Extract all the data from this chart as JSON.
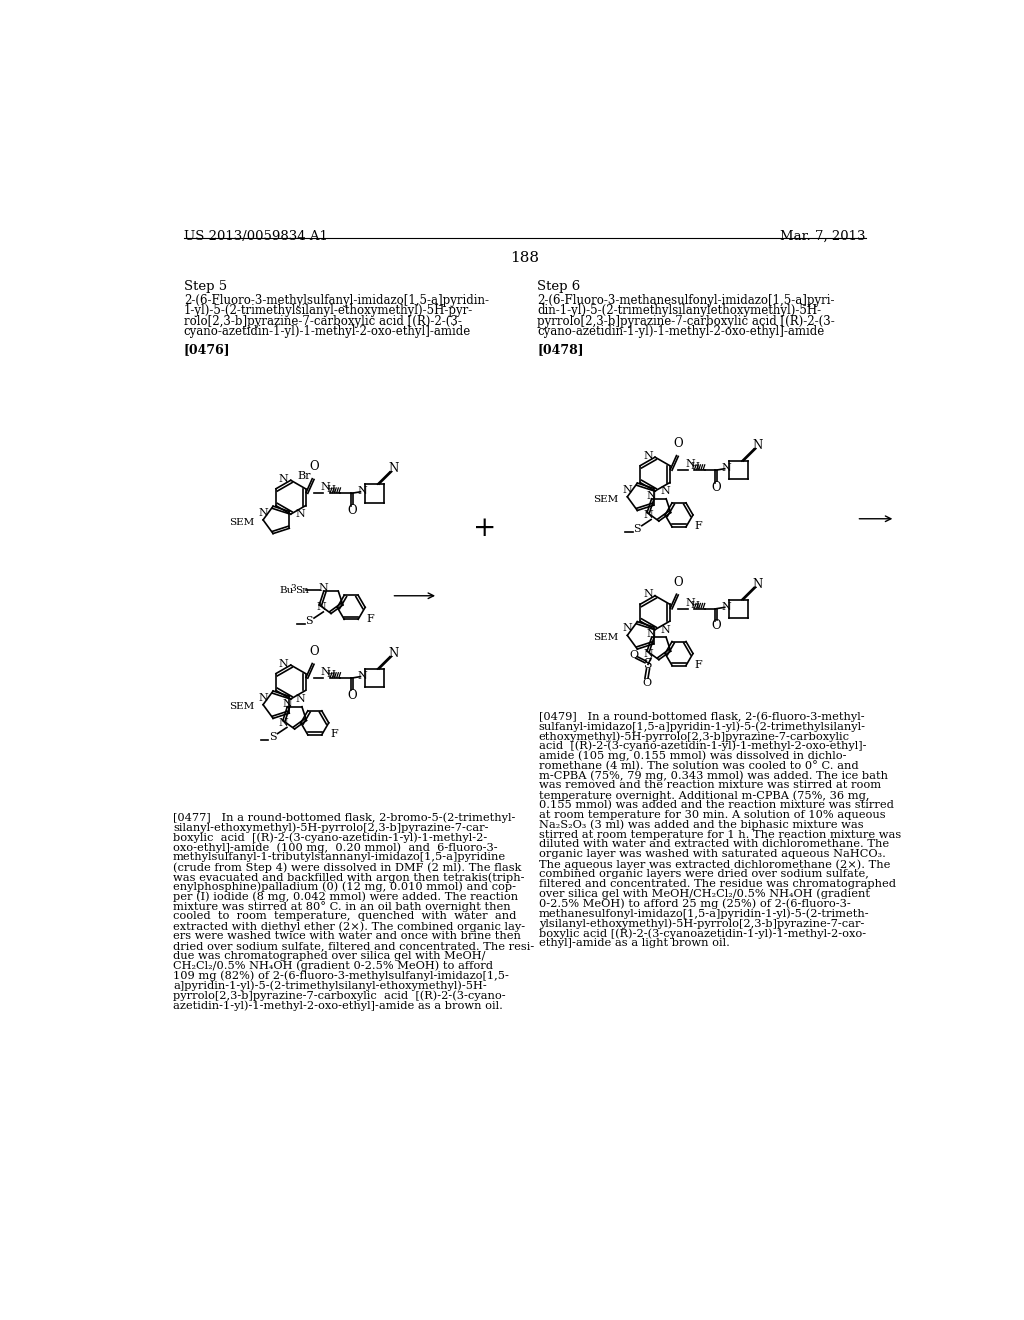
{
  "page_number": "188",
  "patent_number": "US 2013/0059834 A1",
  "patent_date": "Mar. 7, 2013",
  "background_color": "#ffffff",
  "text_color": "#000000",
  "step5_label": "Step 5",
  "step6_label": "Step 6",
  "step5_lines": [
    "2-(6-Fluoro-3-methylsulfanyl-imidazo[1,5-a]pyridin-",
    "1-yl)-5-(2-trimethylsilanyl-ethoxymethyl)-5H-pyr-",
    "rolo[2,3-b]pyrazine-7-carboxylic acid [(R)-2-(3-",
    "cyano-azetidin-1-yl)-1-methyl-2-oxo-ethyl]-amide"
  ],
  "step6_lines": [
    "2-(6-Fluoro-3-methanesulfonyl-imidazo[1,5-a]pyri-",
    "din-1-yl)-5-(2-trimethylsilanylethoxymethyl)-5H-",
    "pyrrolo[2,3-b]pyrazine-7-carboxylic acid [(R)-2-(3-",
    "cyano-azetidin-1-yl)-1-methyl-2-oxo-ethyl]-amide"
  ],
  "ref0476": "[0476]",
  "ref0477": "[0477]",
  "ref0478": "[0478]",
  "ref0479": "[0479]",
  "para0477": [
    "[0477]   In a round-bottomed flask, 2-bromo-5-(2-trimethyl-",
    "silanyl-ethoxymethyl)-5H-pyrrolo[2,3-b]pyrazine-7-car-",
    "boxylic  acid  [(R)-2-(3-cyano-azetidin-1-yl)-1-methyl-2-",
    "oxo-ethyl]-amide  (100 mg,  0.20 mmol)  and  6-fluoro-3-",
    "methylsulfanyl-1-tributylstannanyl-imidazo[1,5-a]pyridine",
    "(crude from Step 4) were dissolved in DMF (2 ml). The flask",
    "was evacuated and backfilled with argon then tetrakis(triph-",
    "enylphosphine)palladium (0) (12 mg, 0.010 mmol) and cop-",
    "per (I) iodide (8 mg, 0.042 mmol) were added. The reaction",
    "mixture was stirred at 80° C. in an oil bath overnight then",
    "cooled  to  room  temperature,  quenched  with  water  and",
    "extracted with diethyl ether (2×). The combined organic lay-",
    "ers were washed twice with water and once with brine then",
    "dried over sodium sulfate, filtered and concentrated. The resi-",
    "due was chromatographed over silica gel with MeOH/",
    "CH₂Cl₂/0.5% NH₄OH (gradient 0-2.5% MeOH) to afford",
    "109 mg (82%) of 2-(6-fluoro-3-methylsulfanyl-imidazo[1,5-",
    "a]pyridin-1-yl)-5-(2-trimethylsilanyl-ethoxymethyl)-5H-",
    "pyrrolo[2,3-b]pyrazine-7-carboxylic  acid  [(R)-2-(3-cyano-",
    "azetidin-1-yl)-1-methyl-2-oxo-ethyl]-amide as a brown oil."
  ],
  "para0479": [
    "[0479]   In a round-bottomed flask, 2-(6-fluoro-3-methyl-",
    "sulfanyl-imidazo[1,5-a]pyridin-1-yl)-5-(2-trimethylsilanyl-",
    "ethoxymethyl)-5H-pyrrolo[2,3-b]pyrazine-7-carboxylic",
    "acid  [(R)-2-(3-cyano-azetidin-1-yl)-1-methyl-2-oxo-ethyl]-",
    "amide (105 mg, 0.155 mmol) was dissolved in dichlo-",
    "romethane (4 ml). The solution was cooled to 0° C. and",
    "m-CPBA (75%, 79 mg, 0.343 mmol) was added. The ice bath",
    "was removed and the reaction mixture was stirred at room",
    "temperature overnight. Additional m-CPBA (75%, 36 mg,",
    "0.155 mmol) was added and the reaction mixture was stirred",
    "at room temperature for 30 min. A solution of 10% aqueous",
    "Na₂S₂O₃ (3 ml) was added and the biphasic mixture was",
    "stirred at room temperature for 1 h. The reaction mixture was",
    "diluted with water and extracted with dichloromethane. The",
    "organic layer was washed with saturated aqueous NaHCO₃.",
    "The aqueous layer was extracted dichloromethane (2×). The",
    "combined organic layers were dried over sodium sulfate,",
    "filtered and concentrated. The residue was chromatographed",
    "over silica gel with MeOH/CH₂Cl₂/0.5% NH₄OH (gradient",
    "0-2.5% MeOH) to afford 25 mg (25%) of 2-(6-fluoro-3-",
    "methanesulfonyl-imidazo[1,5-a]pyridin-1-yl)-5-(2-trimeth-",
    "ylsilanyl-ethoxymethyl)-5H-pyrrolo[2,3-b]pyrazine-7-car-",
    "boxylic acid [(R)-2-(3-cyanoazetidin-1-yl)-1-methyl-2-oxo-",
    "ethyl]-amide as a light brown oil."
  ]
}
